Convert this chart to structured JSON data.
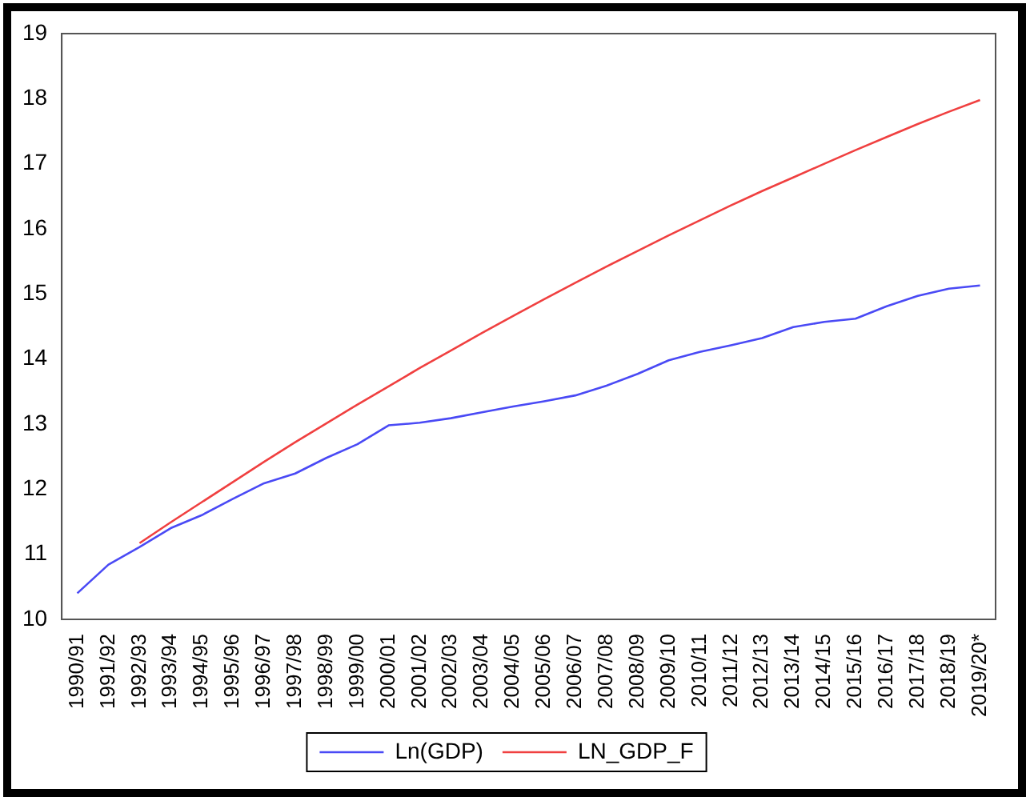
{
  "chart_data": {
    "type": "line",
    "categories": [
      "1990/91",
      "1991/92",
      "1992/93",
      "1993/94",
      "1994/95",
      "1995/96",
      "1996/97",
      "1997/98",
      "1998/99",
      "1999/00",
      "2000/01",
      "2001/02",
      "2002/03",
      "2003/04",
      "2004/05",
      "2005/06",
      "2006/07",
      "2007/08",
      "2008/09",
      "2009/10",
      "2010/11",
      "2011/12",
      "2012/13",
      "2013/14",
      "2014/15",
      "2015/16",
      "2016/17",
      "2017/18",
      "2018/19",
      "2019/20*"
    ],
    "series": [
      {
        "name": "Ln(GDP)",
        "color": "#4a4af5",
        "values": [
          10.4,
          10.84,
          11.11,
          11.4,
          11.6,
          11.85,
          12.09,
          12.24,
          12.48,
          12.69,
          12.98,
          13.02,
          13.09,
          13.18,
          13.27,
          13.35,
          13.44,
          13.59,
          13.77,
          13.98,
          14.11,
          14.21,
          14.32,
          14.49,
          14.57,
          14.62,
          14.81,
          14.97,
          15.08,
          15.13
        ]
      },
      {
        "name": "LN_GDP_F",
        "color": "#f04040",
        "values": [
          null,
          null,
          11.17,
          11.49,
          11.8,
          12.11,
          12.42,
          12.72,
          13.01,
          13.3,
          13.58,
          13.86,
          14.13,
          14.4,
          14.66,
          14.92,
          15.17,
          15.42,
          15.66,
          15.9,
          16.13,
          16.36,
          16.58,
          16.79,
          17.0,
          17.21,
          17.41,
          17.61,
          17.8,
          17.98
        ]
      }
    ],
    "ylim": [
      10,
      19
    ],
    "yticks": [
      10,
      11,
      12,
      13,
      14,
      15,
      16,
      17,
      18,
      19
    ],
    "grid": false,
    "legend": "bottom",
    "marker": "none",
    "line_style": "solid"
  }
}
